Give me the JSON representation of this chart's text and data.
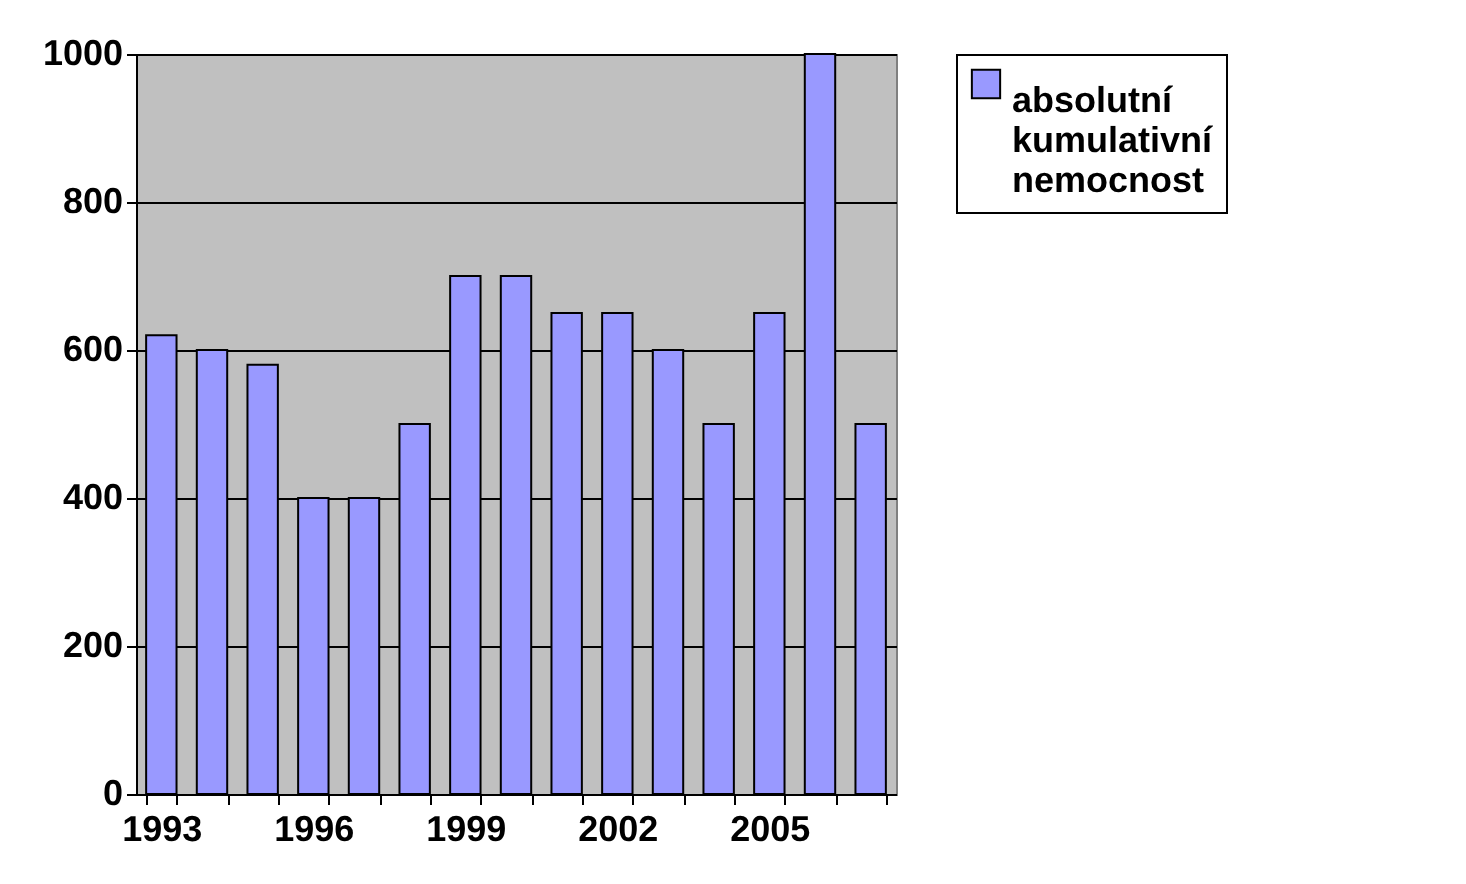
{
  "chart_data": {
    "type": "bar",
    "categories": [
      "1993",
      null,
      null,
      "1996",
      null,
      null,
      "1999",
      null,
      null,
      "2002",
      null,
      null,
      "2005",
      null,
      null
    ],
    "series": [
      {
        "name": "absolutní kumulativní nemocnost",
        "color": "#9999ff",
        "values": [
          620,
          600,
          580,
          400,
          400,
          500,
          700,
          700,
          650,
          650,
          600,
          500,
          650,
          1000,
          500
        ]
      }
    ],
    "ylim": [
      0,
      1000
    ],
    "yticks": [
      0,
      200,
      400,
      600,
      800,
      1000
    ],
    "grid": "y",
    "legend": "right"
  }
}
